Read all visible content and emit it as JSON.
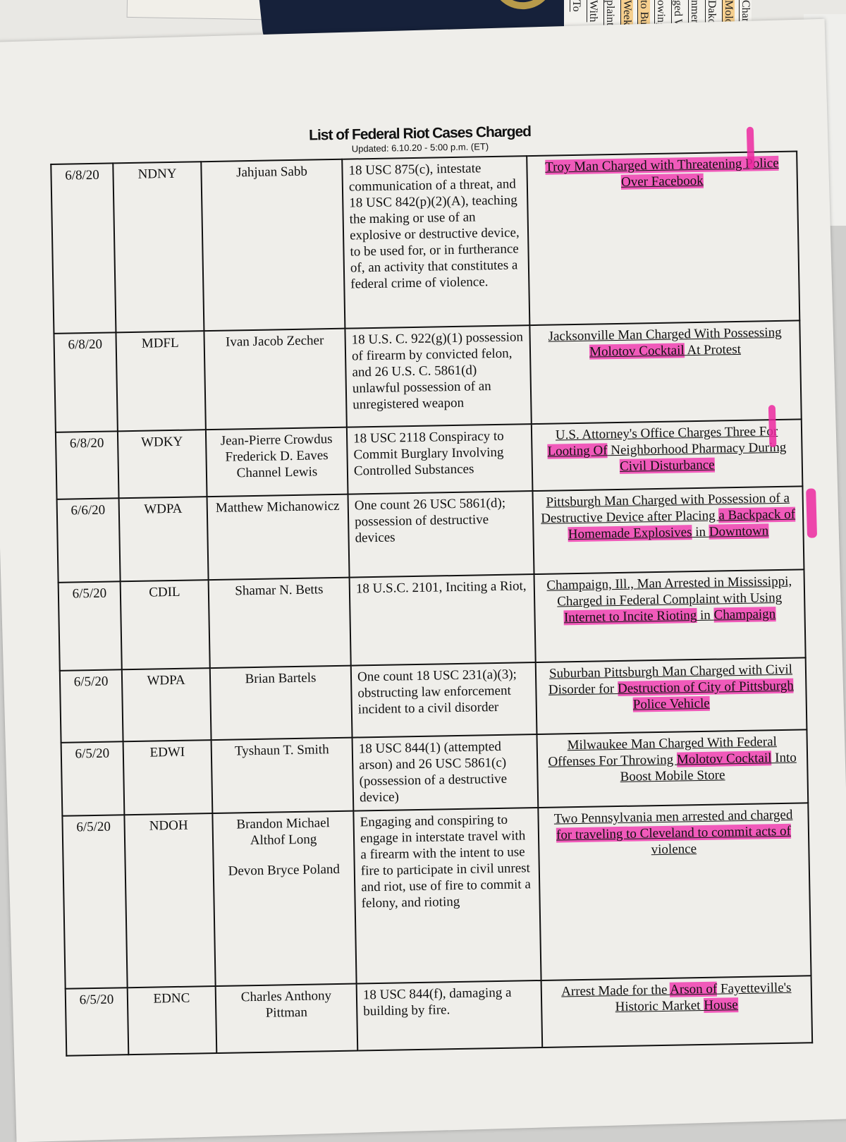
{
  "background_clippings": [
    "To",
    "With",
    "plaint",
    "Weekend",
    "to Buffalo",
    "owing A",
    "ged Wit",
    "nment",
    "Dakota",
    "Moloto",
    "Charg"
  ],
  "document": {
    "title": "List of Federal Riot Cases Charged",
    "updated": "Updated: 6.10.20 - 5:00 p.m. (ET)",
    "rows": [
      {
        "date": "6/8/20",
        "district": "NDNY",
        "defendants": [
          "Jahjuan Sabb"
        ],
        "charges": "18 USC 875(c), intestate communication of a threat, and 18 USC 842(p)(2)(A), teaching the making or use of an explosive or destructive device, to be used for, or in furtherance of, an activity that constitutes a federal crime of violence.",
        "headline": [
          {
            "t": "Troy Man Charged with Threatening Police Over Facebook",
            "hl": true
          }
        ]
      },
      {
        "date": "6/8/20",
        "district": "MDFL",
        "defendants": [
          "Ivan Jacob Zecher"
        ],
        "charges": "18 U.S. C. 922(g)(1) possession of firearm by convicted felon, and 26 U.S. C. 5861(d) unlawful possession of an unregistered weapon",
        "headline": [
          {
            "t": "Jacksonville Man Charged With Possessing ",
            "hl": false
          },
          {
            "t": "Molotov Cocktail",
            "hl": true
          },
          {
            "t": " At Protest",
            "hl": false
          }
        ]
      },
      {
        "date": "6/8/20",
        "district": "WDKY",
        "defendants": [
          "Jean-Pierre Crowdus",
          "Frederick D. Eaves",
          "Channel Lewis"
        ],
        "charges": "18 USC 2118 Conspiracy to Commit Burglary Involving Controlled Substances",
        "headline": [
          {
            "t": "U.S. Attorney's Office Charges Three For ",
            "hl": false
          },
          {
            "t": "Looting Of",
            "hl": true
          },
          {
            "t": " Neighborhood Pharmacy During ",
            "hl": false
          },
          {
            "t": "Civil Disturbance",
            "hl": true
          }
        ]
      },
      {
        "date": "6/6/20",
        "district": "WDPA",
        "defendants": [
          "Matthew Michanowicz"
        ],
        "charges": "One count 26 USC 5861(d); possession of destructive devices",
        "headline": [
          {
            "t": "Pittsburgh Man Charged with Possession of a Destructive Device after Placing ",
            "hl": false
          },
          {
            "t": "a Backpack of Homemade Explosives",
            "hl": true
          },
          {
            "t": " in ",
            "hl": false
          },
          {
            "t": "Downtown",
            "hl": true
          }
        ]
      },
      {
        "date": "6/5/20",
        "district": "CDIL",
        "defendants": [
          "Shamar N. Betts"
        ],
        "charges": "18 U.S.C. 2101, Inciting a Riot,",
        "headline": [
          {
            "t": "Champaign, Ill., Man Arrested in Mississippi, Charged in Federal Complaint with Using ",
            "hl": false
          },
          {
            "t": "Internet to Incite Rioting",
            "hl": true
          },
          {
            "t": " in ",
            "hl": false
          },
          {
            "t": "Champaign",
            "hl": true
          }
        ]
      },
      {
        "date": "6/5/20",
        "district": "WDPA",
        "defendants": [
          "Brian Bartels"
        ],
        "charges": "One count 18 USC 231(a)(3); obstructing law enforcement incident to a civil disorder",
        "headline": [
          {
            "t": "Suburban Pittsburgh Man Charged with Civil Disorder for ",
            "hl": false
          },
          {
            "t": "Destruction of City of Pittsburgh Police Vehicle",
            "hl": true
          }
        ]
      },
      {
        "date": "6/5/20",
        "district": "EDWI",
        "defendants": [
          "Tyshaun T. Smith"
        ],
        "charges": "18 USC 844(1) (attempted arson) and 26 USC 5861(c) (possession of a destructive device)",
        "headline": [
          {
            "t": "Milwaukee Man Charged With Federal Offenses For Throwing ",
            "hl": false
          },
          {
            "t": "Molotov Cocktail",
            "hl": true
          },
          {
            "t": " Into Boost Mobile Store",
            "hl": false
          }
        ]
      },
      {
        "date": "6/5/20",
        "district": "NDOH",
        "defendants": [
          "Brandon Michael Althof Long",
          "Devon Bryce Poland"
        ],
        "charges": "Engaging and conspiring to engage in interstate travel with a firearm with the intent to use fire to participate in civil unrest and riot, use of fire to commit a felony, and rioting",
        "headline": [
          {
            "t": "Two Pennsylvania men arrested and charged ",
            "hl": false
          },
          {
            "t": "for traveling to Cleveland to commit acts of",
            "hl": true
          },
          {
            "t": " violence",
            "hl": false
          }
        ]
      },
      {
        "date": "6/5/20",
        "district": "EDNC",
        "defendants": [
          "Charles Anthony Pittman"
        ],
        "charges": "18 USC 844(f), damaging a building by fire.",
        "headline": [
          {
            "t": "Arrest Made for the ",
            "hl": false
          },
          {
            "t": "Arson of",
            "hl": true
          },
          {
            "t": " Fayetteville's Historic Market ",
            "hl": false
          },
          {
            "t": "House",
            "hl": true
          }
        ]
      }
    ]
  },
  "colors": {
    "highlighter": "#ec28a0",
    "paper": "#efeeea",
    "ink": "#111111"
  }
}
